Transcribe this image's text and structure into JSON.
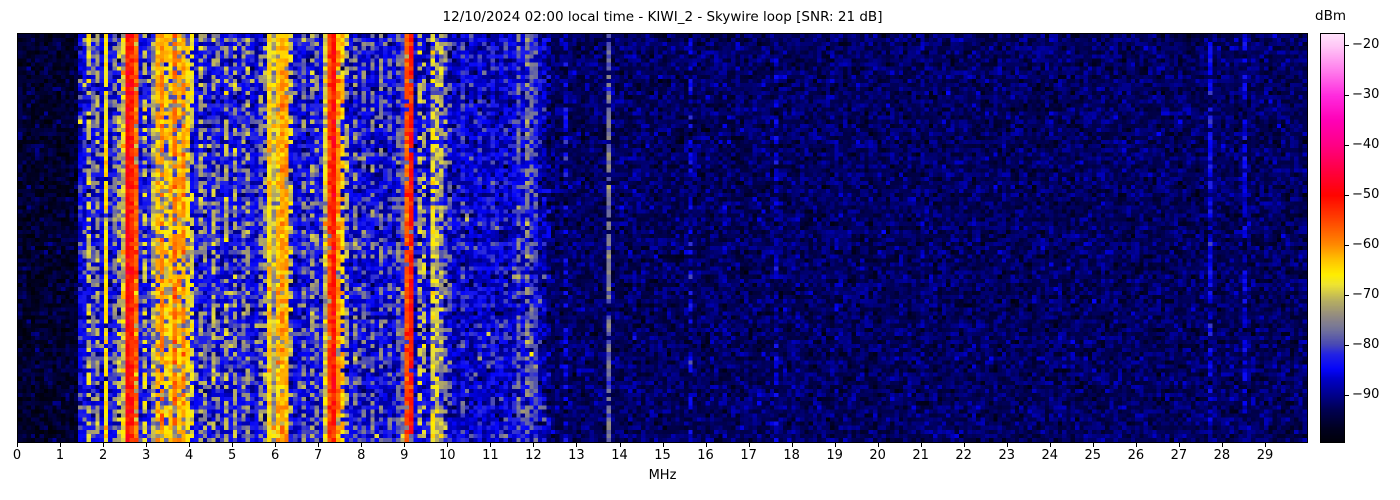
{
  "chart_data": {
    "type": "heatmap",
    "subtype": "spectrogram-waterfall",
    "title": "12/10/2024 02:00 local time - KIWI_2 - Skywire loop [SNR: 21 dB]",
    "xlabel": "MHz",
    "x_range": [
      0,
      30
    ],
    "x_ticks": {
      "values": [
        0,
        1,
        2,
        3,
        4,
        5,
        6,
        7,
        8,
        9,
        10,
        11,
        12,
        13,
        14,
        15,
        16,
        17,
        18,
        19,
        20,
        21,
        22,
        23,
        24,
        25,
        26,
        27,
        28,
        29
      ],
      "labels": [
        "0",
        "1",
        "2",
        "3",
        "4",
        "5",
        "6",
        "7",
        "8",
        "9",
        "10",
        "11",
        "12",
        "13",
        "14",
        "15",
        "16",
        "17",
        "18",
        "19",
        "20",
        "21",
        "22",
        "23",
        "24",
        "25",
        "26",
        "27",
        "28",
        "29"
      ]
    },
    "y_axis": {
      "label": "",
      "ticks": [],
      "note": "time axis, no labels shown"
    },
    "colorbar": {
      "label": "dBm",
      "vmax": -17.6,
      "vmin": -99.6,
      "ticks": [
        {
          "value": -20,
          "label": "−20"
        },
        {
          "value": -30,
          "label": "−30"
        },
        {
          "value": -40,
          "label": "−40"
        },
        {
          "value": -50,
          "label": "−50"
        },
        {
          "value": -60,
          "label": "−60"
        },
        {
          "value": -70,
          "label": "−70"
        },
        {
          "value": -80,
          "label": "−80"
        },
        {
          "value": -90,
          "label": "−90"
        }
      ],
      "colormap_stops": [
        [
          -101,
          "#000000"
        ],
        [
          -97,
          "#000020"
        ],
        [
          -93,
          "#000055"
        ],
        [
          -90,
          "#000090"
        ],
        [
          -87,
          "#0000c8"
        ],
        [
          -85,
          "#0505fa"
        ],
        [
          -82,
          "#2323e4"
        ],
        [
          -80,
          "#4a4ab4"
        ],
        [
          -77,
          "#73739b"
        ],
        [
          -74,
          "#968e7e"
        ],
        [
          -71,
          "#bab25e"
        ],
        [
          -68,
          "#eee432"
        ],
        [
          -66,
          "#ffee00"
        ],
        [
          -63,
          "#ffc200"
        ],
        [
          -60,
          "#ff8a00"
        ],
        [
          -55,
          "#ff4400"
        ],
        [
          -50,
          "#ff0400"
        ],
        [
          -45,
          "#ff0042"
        ],
        [
          -40,
          "#ff0084"
        ],
        [
          -35,
          "#ff00b6"
        ],
        [
          -30,
          "#ff2ade"
        ],
        [
          -25,
          "#ff7cec"
        ],
        [
          -20,
          "#ffc6f6"
        ],
        [
          -15,
          "#ffffff"
        ]
      ]
    },
    "waterfall": {
      "columns": 300,
      "rows": 100,
      "seed": 1337,
      "noise_sigma_active": 3.2,
      "noise_sigma_quiet": 2.4,
      "speckle_prob": 0.05,
      "speckle_boost": 7,
      "noise_floor_bands_format": [
        "f_start_MHz",
        "f_end_MHz",
        "floor_dBm"
      ],
      "noise_floor_bands": [
        [
          0.0,
          1.42,
          -96
        ],
        [
          1.42,
          2.4,
          -85
        ],
        [
          2.4,
          2.85,
          -71
        ],
        [
          2.85,
          3.15,
          -84
        ],
        [
          3.15,
          4.05,
          -77
        ],
        [
          4.05,
          5.8,
          -85
        ],
        [
          5.8,
          6.28,
          -72
        ],
        [
          6.28,
          7.1,
          -85
        ],
        [
          7.1,
          7.5,
          -73
        ],
        [
          7.5,
          8.95,
          -86
        ],
        [
          8.95,
          9.2,
          -80
        ],
        [
          9.2,
          9.6,
          -86
        ],
        [
          9.6,
          9.95,
          -81
        ],
        [
          9.95,
          11.55,
          -87
        ],
        [
          11.55,
          12.15,
          -85
        ],
        [
          12.15,
          12.35,
          -89
        ],
        [
          12.35,
          30.0,
          -92.5
        ]
      ],
      "stations_format": [
        "freq_MHz",
        "level_dBm",
        "duty_fraction"
      ],
      "stations": [
        [
          1.58,
          -70,
          0.6
        ],
        [
          1.72,
          -78,
          0.4
        ],
        [
          1.84,
          -72,
          0.5
        ],
        [
          2.0,
          -66,
          0.95
        ],
        [
          2.15,
          -75,
          0.4
        ],
        [
          2.27,
          -71,
          0.55
        ],
        [
          2.45,
          -61,
          0.9
        ],
        [
          2.52,
          -50,
          1.0
        ],
        [
          2.58,
          -52,
          1.0
        ],
        [
          2.65,
          -60,
          0.9
        ],
        [
          2.75,
          -57,
          0.85
        ],
        [
          2.93,
          -69,
          0.5
        ],
        [
          3.08,
          -70,
          0.5
        ],
        [
          3.2,
          -63,
          0.8
        ],
        [
          3.3,
          -60,
          0.75
        ],
        [
          3.42,
          -65,
          0.7
        ],
        [
          3.52,
          -64,
          0.8
        ],
        [
          3.62,
          -58,
          0.8
        ],
        [
          3.72,
          -63,
          0.75
        ],
        [
          3.82,
          -60,
          0.8
        ],
        [
          3.92,
          -65,
          0.7
        ],
        [
          4.0,
          -68,
          0.6
        ],
        [
          4.15,
          -72,
          0.45
        ],
        [
          4.3,
          -74,
          0.4
        ],
        [
          4.45,
          -71,
          0.5
        ],
        [
          4.62,
          -74,
          0.4
        ],
        [
          4.8,
          -71,
          0.5
        ],
        [
          5.0,
          -72,
          0.45
        ],
        [
          5.15,
          -75,
          0.35
        ],
        [
          5.35,
          -73,
          0.4
        ],
        [
          5.55,
          -74,
          0.4
        ],
        [
          5.7,
          -72,
          0.4
        ],
        [
          5.85,
          -65,
          0.9
        ],
        [
          5.95,
          -63,
          0.85
        ],
        [
          6.05,
          -61,
          0.9
        ],
        [
          6.15,
          -62,
          0.9
        ],
        [
          6.22,
          -66,
          0.7
        ],
        [
          6.35,
          -70,
          0.5
        ],
        [
          6.55,
          -75,
          0.4
        ],
        [
          6.75,
          -73,
          0.4
        ],
        [
          6.9,
          -74,
          0.35
        ],
        [
          7.05,
          -69,
          0.5
        ],
        [
          7.2,
          -55,
          0.95
        ],
        [
          7.27,
          -51,
          1.0
        ],
        [
          7.35,
          -60,
          0.9
        ],
        [
          7.45,
          -64,
          0.7
        ],
        [
          7.6,
          -71,
          0.5
        ],
        [
          7.8,
          -75,
          0.4
        ],
        [
          8.0,
          -76,
          0.35
        ],
        [
          8.2,
          -74,
          0.4
        ],
        [
          8.35,
          -75,
          0.4
        ],
        [
          8.55,
          -77,
          0.3
        ],
        [
          8.75,
          -76,
          0.35
        ],
        [
          9.0,
          -56,
          0.9
        ],
        [
          9.05,
          -51,
          0.95
        ],
        [
          9.12,
          -64,
          0.7
        ],
        [
          9.25,
          -70,
          0.5
        ],
        [
          9.4,
          -71,
          0.5
        ],
        [
          9.56,
          -67,
          0.7
        ],
        [
          9.68,
          -70,
          0.65
        ],
        [
          9.78,
          -71,
          0.55
        ],
        [
          9.88,
          -74,
          0.45
        ],
        [
          10.0,
          -78,
          0.4
        ],
        [
          10.3,
          -80,
          0.35
        ],
        [
          10.65,
          -82,
          0.3
        ],
        [
          11.0,
          -82,
          0.3
        ],
        [
          11.35,
          -81,
          0.3
        ],
        [
          11.62,
          -76,
          0.6
        ],
        [
          11.75,
          -75,
          0.6
        ],
        [
          11.88,
          -78,
          0.5
        ],
        [
          12.02,
          -80,
          0.55
        ],
        [
          12.3,
          -86,
          0.3
        ],
        [
          12.7,
          -85,
          0.35
        ],
        [
          13.68,
          -77,
          0.85
        ],
        [
          14.3,
          -89,
          0.3
        ],
        [
          15.55,
          -85,
          0.5
        ],
        [
          16.4,
          -90,
          0.3
        ],
        [
          17.6,
          -87,
          0.4
        ],
        [
          19.0,
          -90,
          0.3
        ],
        [
          21.0,
          -90,
          0.25
        ],
        [
          24.0,
          -90,
          0.25
        ],
        [
          27.65,
          -85,
          0.65
        ],
        [
          28.5,
          -86,
          0.55
        ]
      ]
    }
  }
}
